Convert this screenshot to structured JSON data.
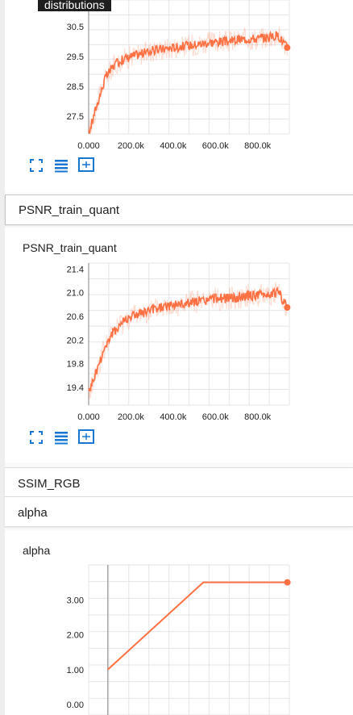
{
  "tooltip": "distributions",
  "sections": {
    "psnr_quant": "PSNR_train_quant",
    "ssim": "SSIM_RGB",
    "alpha": "alpha"
  },
  "chart_data": [
    {
      "type": "line",
      "title": "",
      "xlabel": "",
      "ylabel": "",
      "xlim": [
        0,
        950000
      ],
      "ylim": [
        26.9,
        31.4
      ],
      "yticks": [
        "27.5",
        "28.5",
        "29.5",
        "30.5"
      ],
      "ytick_values": [
        27.5,
        28.5,
        29.5,
        30.5
      ],
      "xticks": [
        "0.000",
        "200.0k",
        "400.0k",
        "600.0k",
        "800.0k"
      ],
      "xtick_values": [
        0,
        200000,
        400000,
        600000,
        800000
      ],
      "series": [
        {
          "color": "#ff7043",
          "x": [
            0,
            40000,
            80000,
            120000,
            160000,
            200000,
            250000,
            300000,
            350000,
            400000,
            450000,
            500000,
            550000,
            600000,
            650000,
            700000,
            750000,
            800000,
            850000,
            900000,
            940000
          ],
          "y": [
            26.9,
            27.9,
            28.8,
            29.2,
            29.4,
            29.5,
            29.6,
            29.7,
            29.75,
            29.8,
            29.85,
            29.9,
            29.95,
            30.0,
            30.0,
            30.05,
            30.1,
            30.1,
            30.15,
            30.2,
            29.8
          ]
        }
      ]
    },
    {
      "type": "line",
      "title": "PSNR_train_quant",
      "xlabel": "",
      "ylabel": "",
      "xlim": [
        0,
        950000
      ],
      "ylim": [
        19.1,
        21.5
      ],
      "yticks": [
        "19.4",
        "19.8",
        "20.2",
        "20.6",
        "21.0",
        "21.4"
      ],
      "ytick_values": [
        19.4,
        19.8,
        20.2,
        20.6,
        21.0,
        21.4
      ],
      "xticks": [
        "0.000",
        "200.0k",
        "400.0k",
        "600.0k",
        "800.0k"
      ],
      "xtick_values": [
        0,
        200000,
        400000,
        600000,
        800000
      ],
      "series": [
        {
          "color": "#ff7043",
          "x": [
            0,
            40000,
            80000,
            120000,
            160000,
            200000,
            250000,
            300000,
            350000,
            400000,
            450000,
            500000,
            550000,
            600000,
            650000,
            700000,
            750000,
            800000,
            850000,
            900000,
            940000
          ],
          "y": [
            19.3,
            19.7,
            20.1,
            20.35,
            20.5,
            20.6,
            20.65,
            20.7,
            20.75,
            20.8,
            20.8,
            20.85,
            20.85,
            20.9,
            20.9,
            20.92,
            20.95,
            20.95,
            20.97,
            21.0,
            20.75
          ]
        }
      ]
    },
    {
      "type": "line",
      "title": "alpha",
      "xlabel": "",
      "ylabel": "",
      "xlim": [
        -100000,
        950000
      ],
      "ylim": [
        -0.3,
        4.0
      ],
      "yticks": [
        "0.00",
        "1.00",
        "2.00",
        "3.00"
      ],
      "ytick_values": [
        0,
        1,
        2,
        3
      ],
      "xticks": [],
      "series": [
        {
          "color": "#ff7043",
          "x": [
            0,
            500000,
            940000
          ],
          "y": [
            1.0,
            3.5,
            3.5
          ]
        }
      ]
    }
  ],
  "icons": [
    "fit-screen-icon",
    "toggle-log-icon",
    "fit-domain-icon"
  ]
}
